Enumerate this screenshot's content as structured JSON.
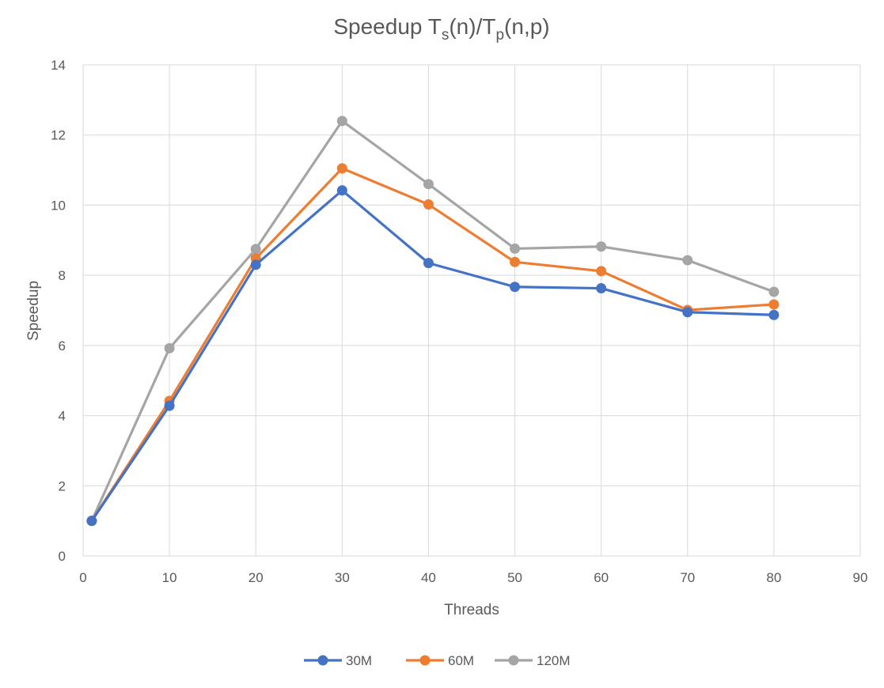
{
  "chart_data": {
    "type": "line",
    "title": {
      "parts": [
        {
          "text": "Speedup T",
          "sub": false
        },
        {
          "text": "s",
          "sub": true
        },
        {
          "text": "(n)/T",
          "sub": false
        },
        {
          "text": "p",
          "sub": true
        },
        {
          "text": "(n,p)",
          "sub": false
        }
      ]
    },
    "xlabel": "Threads",
    "ylabel": "Speedup",
    "xlim": [
      0,
      90
    ],
    "ylim": [
      0,
      14
    ],
    "xticks": [
      0,
      10,
      20,
      30,
      40,
      50,
      60,
      70,
      80,
      90
    ],
    "yticks": [
      0,
      2,
      4,
      6,
      8,
      10,
      12,
      14
    ],
    "grid": true,
    "legend_position": "bottom",
    "x": [
      1,
      10,
      20,
      30,
      40,
      50,
      60,
      70,
      80
    ],
    "series": [
      {
        "name": "30M",
        "color": "#4472c4",
        "values": [
          1,
          4.28,
          8.3,
          10.42,
          8.35,
          7.67,
          7.63,
          6.95,
          6.87
        ]
      },
      {
        "name": "60M",
        "color": "#ed7d31",
        "values": [
          1,
          4.42,
          8.48,
          11.05,
          10.02,
          8.38,
          8.12,
          7.01,
          7.17
        ]
      },
      {
        "name": "120M",
        "color": "#a5a5a5",
        "values": [
          1,
          5.92,
          8.75,
          12.4,
          10.6,
          8.76,
          8.82,
          8.43,
          7.53
        ]
      }
    ]
  }
}
